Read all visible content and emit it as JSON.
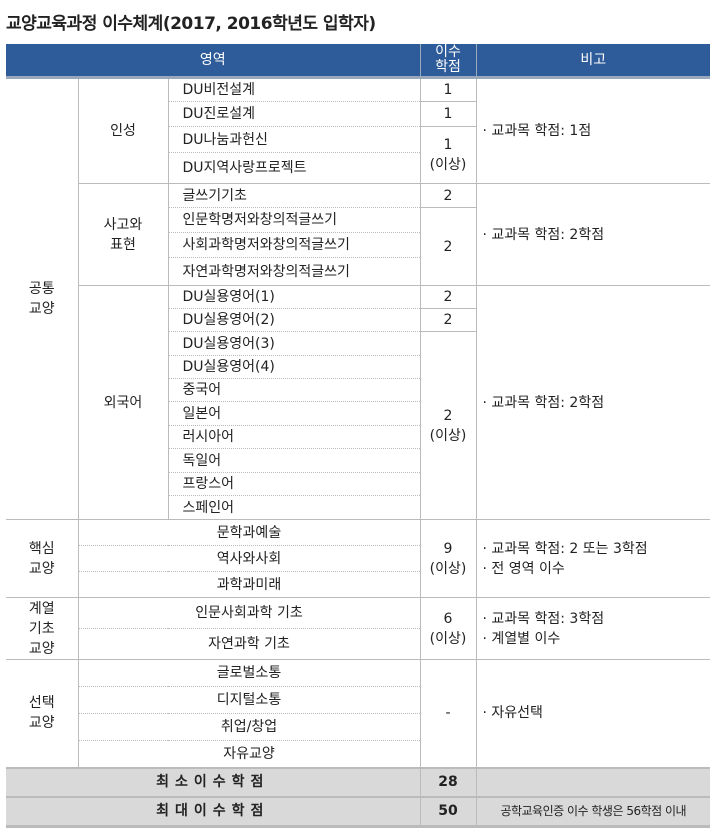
{
  "title": "교양교육과정 이수체계(2017, 2016학년도 입학자)",
  "header": {
    "area": "영역",
    "credits": "이수\n학점",
    "notes": "비고"
  },
  "common": {
    "label": "공통\n교양",
    "areas": [
      {
        "label": "인성",
        "courses": [
          "DU비전설계",
          "DU진로설계",
          "DU나눔과헌신",
          "DU지역사랑프로젝트"
        ],
        "credits": [
          [
            "1",
            1
          ],
          [
            "1",
            1
          ],
          [
            "1\n(이상)",
            2
          ]
        ],
        "note": "· 교과목 학점: 1점"
      },
      {
        "label": "사고와\n표현",
        "courses": [
          "글쓰기기초",
          "인문학명저와창의적글쓰기",
          "사회과학명저와창의적글쓰기",
          "자연과학명저와창의적글쓰기"
        ],
        "credits": [
          [
            "2",
            1
          ],
          [
            "2",
            3
          ]
        ],
        "note": "· 교과목 학점: 2학점"
      },
      {
        "label": "외국어",
        "courses": [
          "DU실용영어(1)",
          "DU실용영어(2)",
          "DU실용영어(3)",
          "DU실용영어(4)",
          "중국어",
          "일본어",
          "러시아어",
          "독일어",
          "프랑스어",
          "스페인어"
        ],
        "credits": [
          [
            "2",
            1
          ],
          [
            "2",
            1
          ],
          [
            "2\n(이상)",
            8
          ]
        ],
        "note": "· 교과목 학점: 2학점"
      }
    ]
  },
  "others": [
    {
      "label": "핵심\n교양",
      "courses": [
        "문학과예술",
        "역사와사회",
        "과학과미래"
      ],
      "credits": "9\n(이상)",
      "note": "· 교과목 학점: 2 또는 3학점\n· 전 영역 이수"
    },
    {
      "label": "계열\n기초\n교양",
      "courses": [
        "인문사회과학 기초",
        "자연과학 기초"
      ],
      "credits": "6\n(이상)",
      "note": "· 교과목 학점: 3학점\n· 계열별 이수"
    },
    {
      "label": "선택\n교양",
      "courses": [
        "글로벌소통",
        "디지털소통",
        "취업/창업",
        "자유교양"
      ],
      "credits": "-",
      "note": "· 자유선택"
    }
  ],
  "summary": [
    {
      "label": "최소이수학점",
      "value": "28",
      "note": ""
    },
    {
      "label": "최대이수학점",
      "value": "50",
      "note": "공학교육인증 이수 학생은 56학점 이내"
    }
  ]
}
